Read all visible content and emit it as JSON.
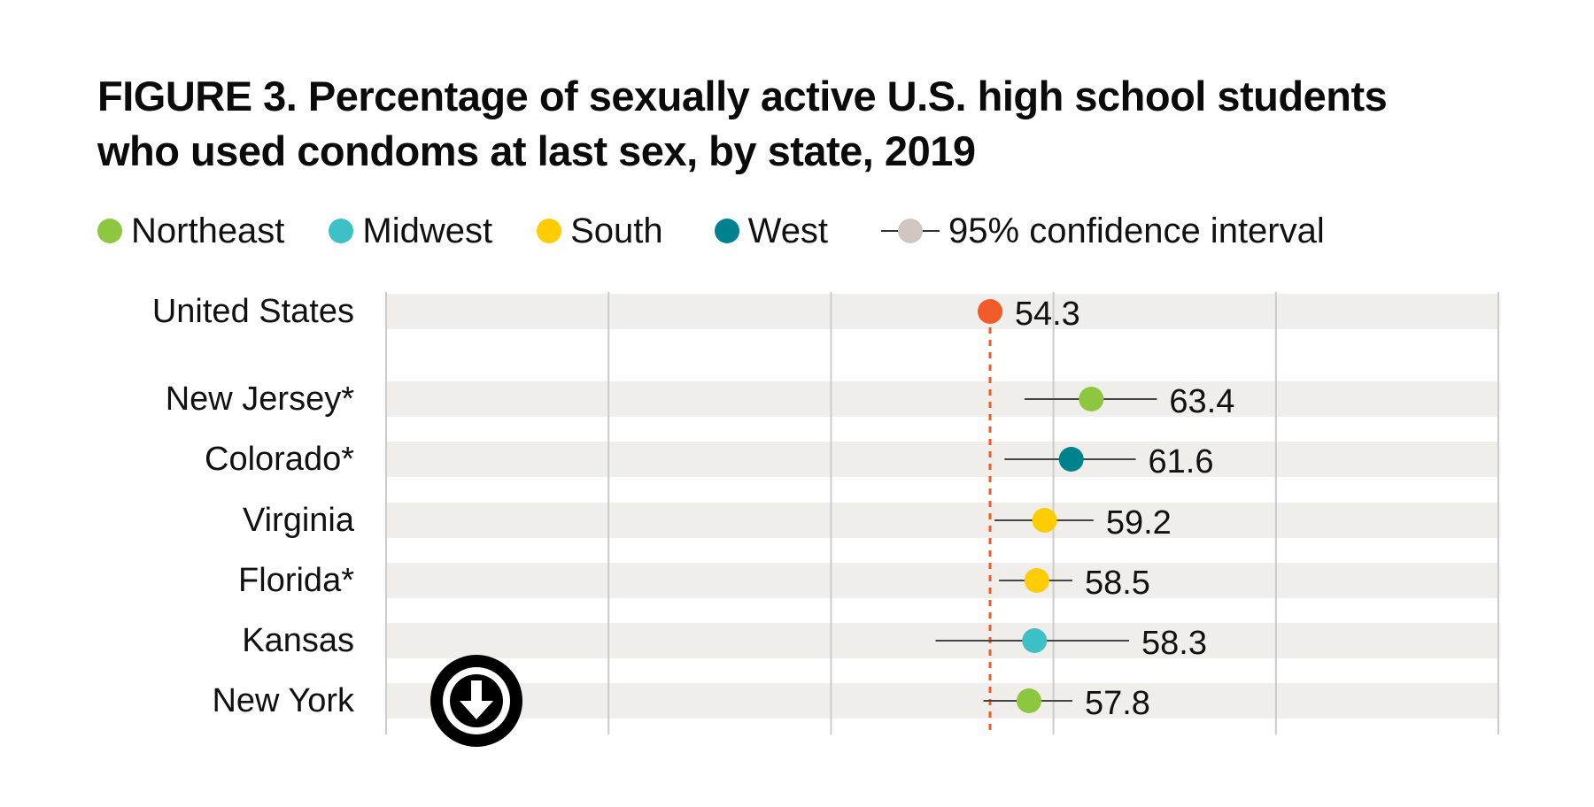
{
  "title_line1": "FIGURE 3. Percentage of sexually active U.S. high school students",
  "title_line2": "who used condoms at last sex, by state, 2019",
  "legend": [
    {
      "label": "Northeast",
      "color": "#8dc63f"
    },
    {
      "label": "Midwest",
      "color": "#3ec1c6"
    },
    {
      "label": "South",
      "color": "#ffcc00"
    },
    {
      "label": "West",
      "color": "#00828c"
    }
  ],
  "legend_ci": {
    "label": "95% confidence interval",
    "color": "#cfc7c0"
  },
  "download_icon": "download-arrow-icon",
  "chart_data": {
    "type": "dot-range",
    "title": "FIGURE 3. Percentage of sexually active U.S. high school students who used condoms at last sex, by state, 2019",
    "xlim": [
      0,
      100
    ],
    "grid": true,
    "reference": {
      "name": "United States",
      "value": 54.3,
      "ci": [
        53.3,
        55.4
      ],
      "color": "#f15a29"
    },
    "rows": [
      {
        "name": "United States",
        "value": 54.3,
        "value_label": "54.3",
        "ci": [
          53.3,
          55.4
        ],
        "region": "US",
        "color": "#f15a29"
      },
      {
        "name": "New Jersey*",
        "value": 63.4,
        "value_label": "63.4",
        "ci": [
          57.4,
          69.3
        ],
        "region": "Northeast",
        "color": "#8dc63f"
      },
      {
        "name": "Colorado*",
        "value": 61.6,
        "value_label": "61.6",
        "ci": [
          55.6,
          67.4
        ],
        "region": "West",
        "color": "#00828c"
      },
      {
        "name": "Virginia",
        "value": 59.2,
        "value_label": "59.2",
        "ci": [
          54.7,
          63.6
        ],
        "region": "South",
        "color": "#ffcc00"
      },
      {
        "name": "Florida*",
        "value": 58.5,
        "value_label": "58.5",
        "ci": [
          55.1,
          61.7
        ],
        "region": "South",
        "color": "#ffcc00"
      },
      {
        "name": "Kansas",
        "value": 58.3,
        "value_label": "58.3",
        "ci": [
          49.4,
          66.8
        ],
        "region": "Midwest",
        "color": "#3ec1c6"
      },
      {
        "name": "New York",
        "value": 57.8,
        "value_label": "57.8",
        "ci": [
          53.7,
          61.7
        ],
        "region": "Northeast",
        "color": "#8dc63f"
      }
    ]
  }
}
